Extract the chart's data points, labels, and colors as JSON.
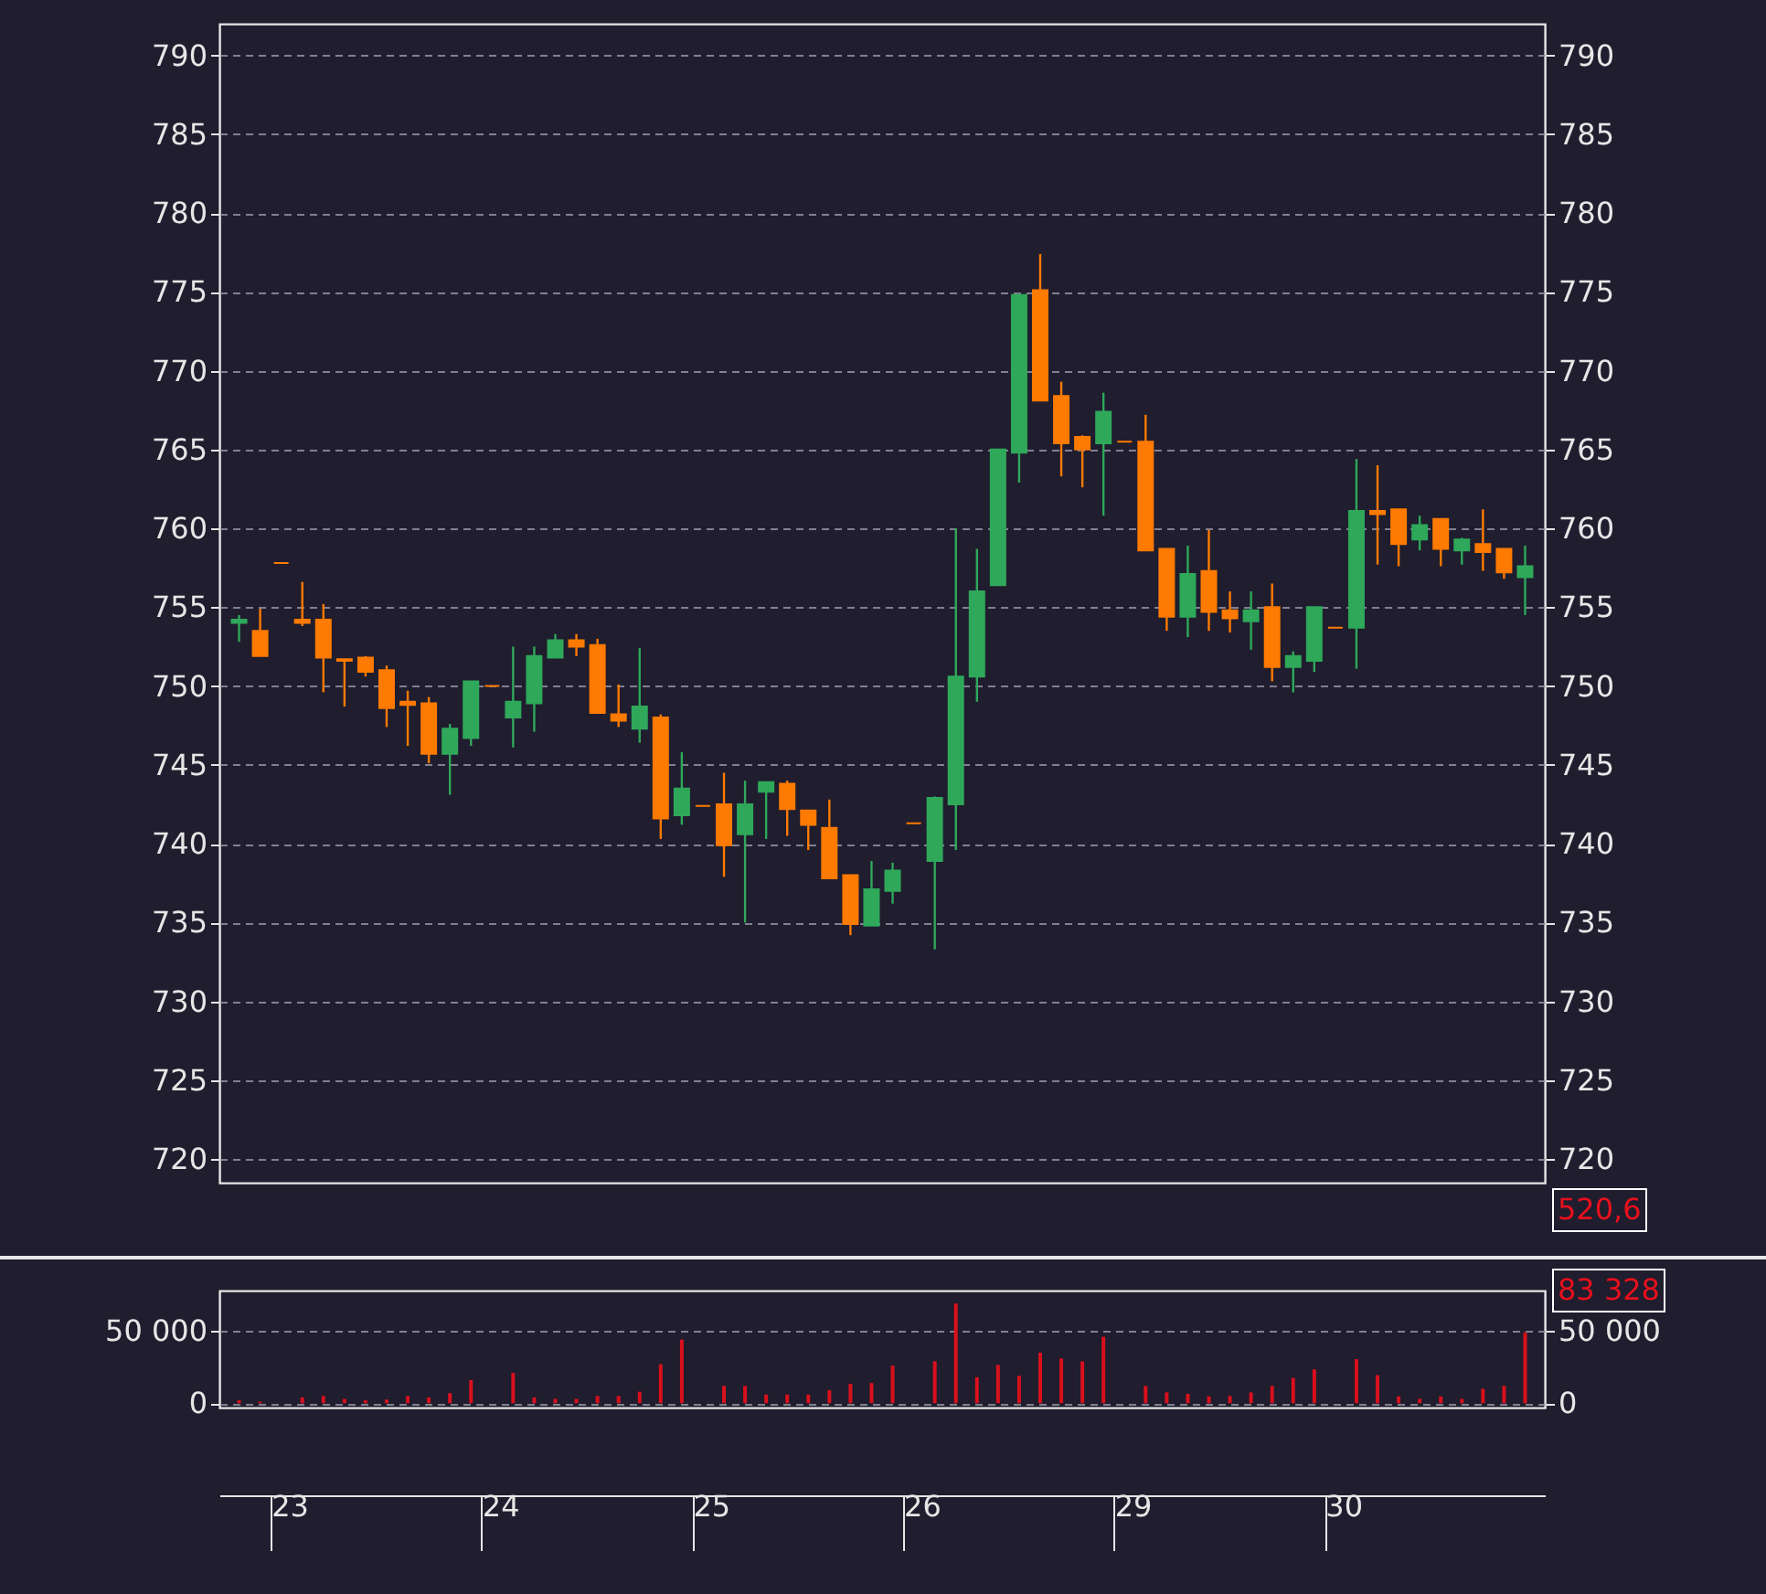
{
  "chart_data": [
    {
      "type": "candlestick",
      "categories": [
        null,
        null,
        "23",
        null,
        null,
        null,
        null,
        null,
        null,
        null,
        null,
        null,
        "24",
        null,
        null,
        null,
        null,
        null,
        null,
        null,
        null,
        null,
        "25",
        null,
        null,
        null,
        null,
        null,
        null,
        null,
        null,
        null,
        "26",
        null,
        null,
        null,
        null,
        null,
        null,
        null,
        null,
        null,
        "29",
        null,
        null,
        null,
        null,
        null,
        null,
        null,
        null,
        null,
        "30",
        null,
        null,
        null,
        null,
        null,
        null,
        null,
        null,
        null
      ],
      "ohlc": [
        [
          754.0,
          754.5,
          752.8,
          754.2
        ],
        [
          753.5,
          754.9,
          751.9,
          751.9
        ],
        [
          757.8,
          757.8,
          757.8,
          757.8
        ],
        [
          754.2,
          756.6,
          753.8,
          754.0
        ],
        [
          754.2,
          755.2,
          749.6,
          751.8
        ],
        [
          751.7,
          751.7,
          748.7,
          751.6
        ],
        [
          751.8,
          751.9,
          750.6,
          750.9
        ],
        [
          751.0,
          751.3,
          747.4,
          748.6
        ],
        [
          749.0,
          749.7,
          746.2,
          748.8
        ],
        [
          748.9,
          749.3,
          745.1,
          745.7
        ],
        [
          745.7,
          747.6,
          743.1,
          747.3
        ],
        [
          746.7,
          750.3,
          746.2,
          750.3
        ],
        [
          750.0,
          750.0,
          750.0,
          750.0
        ],
        [
          748.0,
          752.5,
          746.1,
          749.0
        ],
        [
          748.9,
          752.5,
          747.1,
          751.9
        ],
        [
          751.8,
          753.3,
          751.8,
          752.9
        ],
        [
          752.9,
          753.3,
          751.9,
          752.5
        ],
        [
          752.6,
          753.0,
          748.3,
          748.3
        ],
        [
          748.2,
          750.1,
          747.4,
          747.8
        ],
        [
          747.3,
          752.4,
          746.4,
          748.7
        ],
        [
          748.0,
          748.2,
          740.3,
          741.6
        ],
        [
          741.8,
          745.8,
          741.2,
          743.5
        ],
        [
          742.4,
          742.4,
          742.4,
          742.4
        ],
        [
          742.5,
          744.5,
          737.9,
          739.9
        ],
        [
          740.6,
          744.0,
          735.0,
          742.5
        ],
        [
          743.3,
          743.9,
          740.3,
          743.9
        ],
        [
          743.8,
          744.0,
          740.5,
          742.2
        ],
        [
          742.1,
          742.1,
          739.6,
          741.2
        ],
        [
          741.0,
          742.8,
          737.8,
          737.8
        ],
        [
          738.0,
          738.0,
          734.2,
          734.9
        ],
        [
          734.8,
          738.9,
          734.8,
          737.1
        ],
        [
          737.0,
          738.8,
          736.2,
          738.3
        ],
        [
          741.3,
          741.3,
          741.3,
          741.3
        ],
        [
          738.9,
          743.0,
          733.3,
          742.9
        ],
        [
          742.5,
          760.0,
          739.6,
          750.6
        ],
        [
          750.6,
          758.7,
          749.0,
          756.0
        ],
        [
          756.4,
          765.0,
          756.4,
          765.0
        ],
        [
          764.8,
          774.8,
          762.9,
          774.8
        ],
        [
          775.1,
          777.4,
          768.1,
          768.1
        ],
        [
          768.4,
          769.3,
          763.3,
          765.4
        ],
        [
          765.8,
          765.9,
          762.6,
          765.0
        ],
        [
          765.4,
          768.6,
          760.8,
          767.4
        ],
        [
          765.5,
          765.5,
          765.5,
          765.5
        ],
        [
          765.5,
          767.2,
          758.6,
          758.6
        ],
        [
          758.7,
          758.7,
          753.5,
          754.4
        ],
        [
          754.4,
          758.9,
          753.1,
          757.1
        ],
        [
          757.3,
          759.9,
          753.5,
          754.7
        ],
        [
          754.8,
          756.0,
          753.4,
          754.3
        ],
        [
          754.1,
          756.0,
          752.3,
          754.8
        ],
        [
          755.0,
          756.5,
          750.3,
          751.2
        ],
        [
          751.2,
          752.2,
          749.6,
          751.9
        ],
        [
          751.6,
          755.0,
          750.9,
          755.0
        ],
        [
          753.7,
          753.7,
          753.7,
          753.7
        ],
        [
          753.7,
          764.4,
          751.1,
          761.1
        ],
        [
          761.1,
          764.0,
          757.7,
          760.9
        ],
        [
          761.2,
          761.2,
          757.6,
          759.0
        ],
        [
          759.3,
          760.8,
          758.6,
          760.2
        ],
        [
          760.6,
          760.6,
          757.6,
          758.7
        ],
        [
          758.6,
          759.4,
          757.7,
          759.3
        ],
        [
          759.0,
          761.2,
          757.3,
          758.5
        ],
        [
          758.7,
          758.7,
          756.8,
          757.2
        ],
        [
          756.9,
          758.9,
          754.5,
          757.6
        ]
      ],
      "colors": [
        "#2fa85a",
        "#ff7a00",
        "#ff7a00",
        "#ff7a00",
        "#ff7a00",
        "#ff7a00",
        "#ff7a00",
        "#ff7a00",
        "#ff7a00",
        "#ff7a00",
        "#2fa85a",
        "#2fa85a",
        "#ff7a00",
        "#2fa85a",
        "#2fa85a",
        "#2fa85a",
        "#ff7a00",
        "#ff7a00",
        "#ff7a00",
        "#2fa85a",
        "#ff7a00",
        "#2fa85a",
        "#ff7a00",
        "#ff7a00",
        "#2fa85a",
        "#2fa85a",
        "#ff7a00",
        "#ff7a00",
        "#ff7a00",
        "#ff7a00",
        "#2fa85a",
        "#2fa85a",
        "#ff7a00",
        "#2fa85a",
        "#2fa85a",
        "#2fa85a",
        "#2fa85a",
        "#2fa85a",
        "#ff7a00",
        "#ff7a00",
        "#ff7a00",
        "#2fa85a",
        "#ff7a00",
        "#ff7a00",
        "#ff7a00",
        "#2fa85a",
        "#ff7a00",
        "#ff7a00",
        "#2fa85a",
        "#ff7a00",
        "#2fa85a",
        "#2fa85a",
        "#ff7a00",
        "#2fa85a",
        "#ff7a00",
        "#ff7a00",
        "#2fa85a",
        "#ff7a00",
        "#2fa85a",
        "#ff7a00",
        "#ff7a00",
        "#2fa85a"
      ],
      "ylim": [
        718.5,
        792
      ],
      "yticks": [
        720,
        725,
        730,
        735,
        740,
        745,
        750,
        755,
        760,
        765,
        770,
        775,
        780,
        785,
        790
      ],
      "y2lim": [
        718.5,
        792
      ],
      "y2ticks": [
        720,
        725,
        730,
        735,
        740,
        745,
        750,
        755,
        760,
        765,
        770,
        775,
        780,
        785,
        790
      ],
      "grid": "y",
      "tick_labels": "y",
      "annotations": [
        "520,6"
      ]
    },
    {
      "type": "bar",
      "categories": [
        null,
        null,
        "23",
        null,
        null,
        null,
        null,
        null,
        null,
        null,
        null,
        null,
        "24",
        null,
        null,
        null,
        null,
        null,
        null,
        null,
        null,
        null,
        "25",
        null,
        null,
        null,
        null,
        null,
        null,
        null,
        null,
        null,
        "26",
        null,
        null,
        null,
        null,
        null,
        null,
        null,
        null,
        null,
        "29",
        null,
        null,
        null,
        null,
        null,
        null,
        null,
        null,
        null,
        "30",
        null,
        null,
        null,
        null,
        null,
        null,
        null,
        null,
        null
      ],
      "series": [
        {
          "color": "#d8101c",
          "values": [
            2000,
            1000,
            0,
            4000,
            5000,
            3000,
            2000,
            2500,
            5000,
            4000,
            7000,
            16000,
            0,
            21000,
            4000,
            3000,
            3000,
            5000,
            5000,
            8000,
            27000,
            44000,
            0,
            12000,
            12000,
            6000,
            6000,
            6000,
            9000,
            13500,
            14000,
            26000,
            0,
            29000,
            69000,
            18000,
            26500,
            19000,
            35000,
            31000,
            29000,
            46000,
            0,
            12000,
            7500,
            6500,
            4700,
            5000,
            7500,
            12000,
            17500,
            23500,
            0,
            30500,
            19500,
            4700,
            3000,
            4700,
            3000,
            10000,
            12000,
            49000
          ]
        }
      ],
      "ylim": [
        -3000,
        78000
      ],
      "yticks": [
        {
          "value": 0,
          "label": "0"
        },
        {
          "value": 50000,
          "label": "50 000"
        }
      ],
      "y2lim": [
        -3000,
        78000
      ],
      "y2ticks": [
        {
          "value": 0,
          "label": "0"
        },
        {
          "value": 50000,
          "label": "50 000"
        }
      ],
      "grid": "y",
      "annotations": [
        "83 328"
      ]
    }
  ]
}
